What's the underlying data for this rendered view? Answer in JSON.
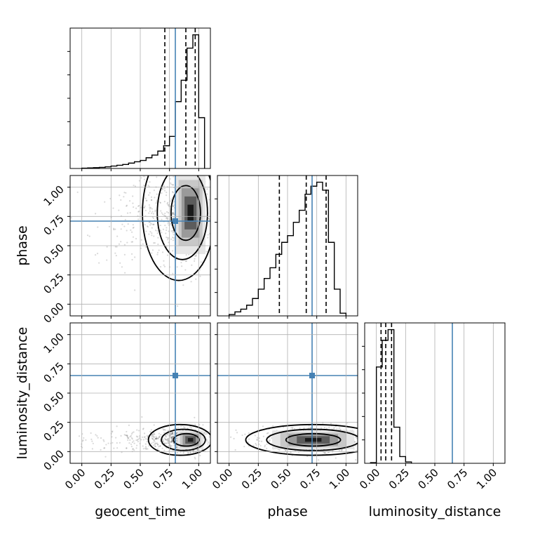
{
  "chart_data": {
    "type": "corner",
    "parameters": [
      "geocent_time",
      "phase",
      "luminosity_distance"
    ],
    "tick_labels": [
      "0.00",
      "0.25",
      "0.50",
      "0.75",
      "1.00"
    ],
    "tick_values": [
      0,
      0.25,
      0.5,
      0.75,
      1.0
    ],
    "axis_ranges": {
      "geocent_time": [
        -0.1,
        1.1
      ],
      "phase": [
        -0.1,
        1.1
      ],
      "luminosity_distance": [
        -0.1,
        1.1
      ]
    },
    "grid": true,
    "truth_color": "#4682b4",
    "truths": {
      "geocent_time": 0.8,
      "phase": 0.71,
      "luminosity_distance": 0.65
    },
    "quantiles": {
      "geocent_time": [
        0.71,
        0.89,
        0.97
      ],
      "phase": [
        0.43,
        0.66,
        0.83
      ],
      "luminosity_distance": [
        0.04,
        0.08,
        0.13
      ]
    },
    "histograms": {
      "geocent_time": {
        "bin_edges": [
          0.0,
          0.05,
          0.1,
          0.15,
          0.2,
          0.25,
          0.3,
          0.35,
          0.4,
          0.45,
          0.5,
          0.55,
          0.6,
          0.65,
          0.7,
          0.75,
          0.8,
          0.85,
          0.9,
          0.95,
          1.0,
          1.05
        ],
        "counts": [
          0.002,
          0.004,
          0.006,
          0.008,
          0.012,
          0.018,
          0.024,
          0.03,
          0.04,
          0.05,
          0.06,
          0.08,
          0.1,
          0.13,
          0.17,
          0.24,
          0.5,
          0.66,
          0.9,
          1.0,
          0.38
        ]
      },
      "phase": {
        "bin_edges": [
          0.0,
          0.05,
          0.1,
          0.15,
          0.2,
          0.25,
          0.3,
          0.35,
          0.4,
          0.45,
          0.5,
          0.55,
          0.6,
          0.65,
          0.7,
          0.75,
          0.8,
          0.85,
          0.9,
          0.95,
          1.0
        ],
        "counts": [
          0.01,
          0.03,
          0.05,
          0.08,
          0.13,
          0.2,
          0.28,
          0.36,
          0.46,
          0.55,
          0.6,
          0.7,
          0.79,
          0.91,
          0.97,
          1.0,
          0.94,
          0.55,
          0.2,
          0.02
        ]
      },
      "luminosity_distance": {
        "bin_edges": [
          -0.05,
          0.0,
          0.05,
          0.1,
          0.15,
          0.2,
          0.25,
          0.3
        ],
        "counts": [
          0.005,
          0.72,
          0.92,
          1.0,
          0.27,
          0.05,
          0.01
        ]
      }
    },
    "joint_panels": [
      {
        "x": "geocent_time",
        "y": "phase",
        "center": [
          0.93,
          0.78
        ],
        "spread": [
          0.08,
          0.22
        ],
        "tail": "left-x"
      },
      {
        "x": "geocent_time",
        "y": "luminosity_distance",
        "center": [
          0.93,
          0.1
        ],
        "spread": [
          0.07,
          0.05
        ],
        "tail": "left-x"
      },
      {
        "x": "phase",
        "y": "luminosity_distance",
        "center": [
          0.72,
          0.1
        ],
        "spread": [
          0.22,
          0.05
        ],
        "tail": "none"
      }
    ],
    "contour_levels": 3
  }
}
